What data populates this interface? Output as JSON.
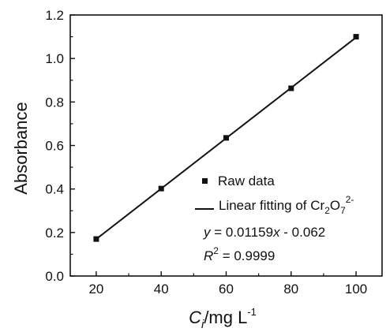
{
  "chart_data": {
    "type": "scatter",
    "xlabel": {
      "main": "C",
      "sub": "i",
      "unit": "/mg L",
      "sup": "-1"
    },
    "ylabel": "Absorbance",
    "xlim": [
      12,
      108
    ],
    "ylim": [
      0.0,
      1.2
    ],
    "x_ticks": [
      20,
      40,
      60,
      80,
      100
    ],
    "x_tick_labels": [
      "20",
      "40",
      "60",
      "80",
      "100"
    ],
    "y_ticks": [
      0.0,
      0.2,
      0.4,
      0.6,
      0.8,
      1.0,
      1.2
    ],
    "y_tick_labels": [
      "0.0",
      "0.2",
      "0.4",
      "0.6",
      "0.8",
      "1.0",
      "1.2"
    ],
    "grid": false,
    "legend_position": "bottom-right",
    "series": [
      {
        "name": "Raw data",
        "kind": "points",
        "marker": "square",
        "x": [
          20,
          40,
          60,
          80,
          100
        ],
        "y": [
          0.17,
          0.402,
          0.635,
          0.863,
          1.1
        ]
      },
      {
        "name": "Linear fitting",
        "kind": "line",
        "slope": 0.01159,
        "intercept": -0.062,
        "x_range": [
          20,
          100
        ]
      }
    ],
    "legend": {
      "raw_label": "Raw data",
      "fit_label_prefix": "Linear fitting of Cr",
      "fit_sub1": "2",
      "fit_mid": "O",
      "fit_sub2": "7",
      "fit_sup": "2-"
    },
    "annotations": {
      "equation_var": "y",
      "equation_rest": " = 0.01159",
      "equation_x": "x",
      "equation_tail": " - 0.062",
      "r2_var": "R",
      "r2_sup": "2",
      "r2_rest": " = 0.9999"
    }
  }
}
